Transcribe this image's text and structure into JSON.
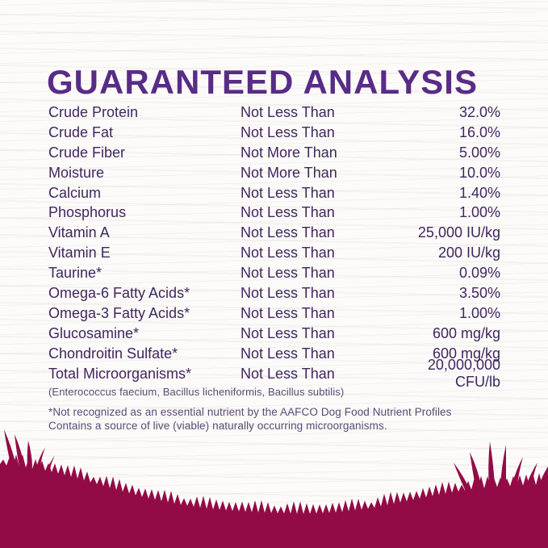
{
  "title": "GUARANTEED ANALYSIS",
  "table": {
    "rows": [
      {
        "nutrient": "Crude Protein",
        "qualifier": "Not Less Than",
        "value": "32.0%"
      },
      {
        "nutrient": "Crude Fat",
        "qualifier": "Not Less Than",
        "value": "16.0%"
      },
      {
        "nutrient": "Crude Fiber",
        "qualifier": "Not More Than",
        "value": "5.00%"
      },
      {
        "nutrient": "Moisture",
        "qualifier": "Not More Than",
        "value": "10.0%"
      },
      {
        "nutrient": "Calcium",
        "qualifier": "Not Less Than",
        "value": "1.40%"
      },
      {
        "nutrient": "Phosphorus",
        "qualifier": "Not Less Than",
        "value": "1.00%"
      },
      {
        "nutrient": "Vitamin A",
        "qualifier": "Not Less Than",
        "value": "25,000 IU/kg"
      },
      {
        "nutrient": "Vitamin E",
        "qualifier": "Not Less Than",
        "value": "200 IU/kg"
      },
      {
        "nutrient": "Taurine*",
        "qualifier": "Not Less Than",
        "value": "0.09%"
      },
      {
        "nutrient": "Omega-6 Fatty Acids*",
        "qualifier": "Not Less Than",
        "value": "3.50%"
      },
      {
        "nutrient": "Omega-3 Fatty Acids*",
        "qualifier": "Not Less Than",
        "value": "1.00%"
      },
      {
        "nutrient": "Glucosamine*",
        "qualifier": "Not Less Than",
        "value": "600 mg/kg"
      },
      {
        "nutrient": "Chondroitin Sulfate*",
        "qualifier": "Not Less Than",
        "value": "600 mg/kg"
      },
      {
        "nutrient": "Total Microorganisms*",
        "qualifier": "Not Less Than",
        "value": "20,000,000 CFU/lb"
      }
    ],
    "species_note": "(Enterococcus faecium, Bacillus licheniformis, Bacillus subtilis)"
  },
  "footnotes": [
    "*Not recognized as an essential nutrient by the AAFCO Dog Food Nutrient Profiles",
    "Contains a source of live (viable) naturally occurring microorganisms."
  ],
  "colors": {
    "title_purple": "#582c86",
    "body_text_purple": "#41265f",
    "footnote_purple": "#5d4a76",
    "grass_magenta": "#930b46",
    "background": "#fcfbf9"
  }
}
